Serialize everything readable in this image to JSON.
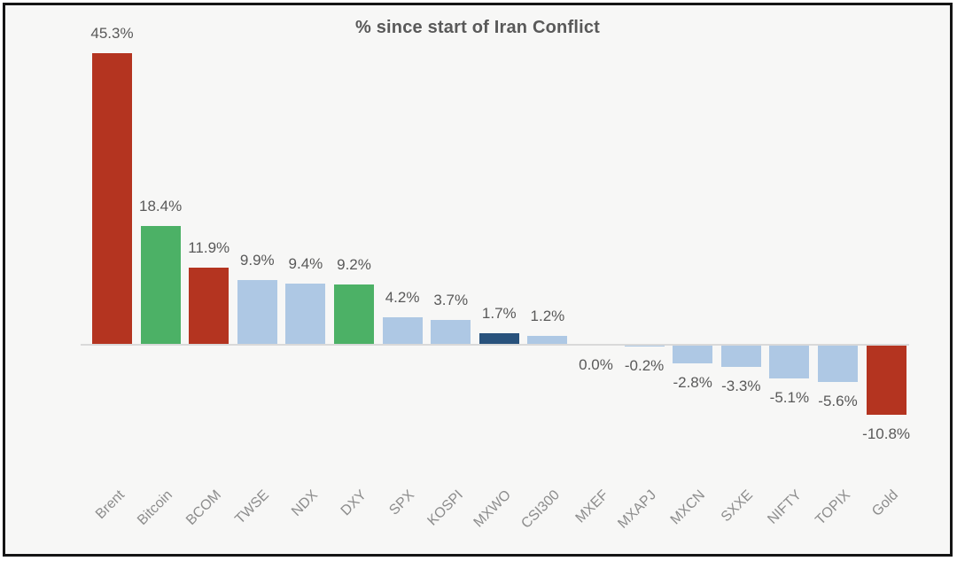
{
  "window": {
    "outer_background": "#ffffff",
    "frame_border_color": "#151515",
    "plot_background": "#f7f7f6"
  },
  "chart_data": {
    "type": "bar",
    "title": "% since start of Iran Conflict",
    "xlabel": "",
    "ylabel": "",
    "categories": [
      "Brent",
      "Bitcoin",
      "BCOM",
      "TWSE",
      "NDX",
      "DXY",
      "SPX",
      "KOSPI",
      "MXWO",
      "CSI300",
      "MXEF",
      "MXAPJ",
      "MXCN",
      "SXXE",
      "NIFTY",
      "TOPIX",
      "Gold"
    ],
    "values": [
      45.3,
      18.4,
      11.9,
      9.9,
      9.4,
      9.2,
      4.2,
      3.7,
      1.7,
      1.2,
      0.0,
      -0.2,
      -2.8,
      -3.3,
      -5.1,
      -5.6,
      -10.8
    ],
    "value_labels": [
      "45.3%",
      "18.4%",
      "11.9%",
      "9.9%",
      "9.4%",
      "9.2%",
      "4.2%",
      "3.7%",
      "1.7%",
      "1.2%",
      "0.0%",
      "-0.2%",
      "-2.8%",
      "-3.3%",
      "-5.1%",
      "-5.6%",
      "-10.8%"
    ],
    "bar_colors": [
      "#b43420",
      "#4cb166",
      "#b43420",
      "#aec8e4",
      "#aec8e4",
      "#4cb166",
      "#aec8e4",
      "#aec8e4",
      "#28527c",
      "#aec8e4",
      "#aec8e4",
      "#aec8e4",
      "#aec8e4",
      "#aec8e4",
      "#aec8e4",
      "#aec8e4",
      "#b43420"
    ],
    "ylim": [
      -15,
      50
    ],
    "grid": false,
    "legend": false,
    "data_labels": "outside-end",
    "category_labels_rotation_deg": 45,
    "colors": {
      "title_text": "#595959",
      "value_label_text": "#595959",
      "category_label_text": "#8c8c8c",
      "axis_line": "#d9d9d9"
    }
  }
}
